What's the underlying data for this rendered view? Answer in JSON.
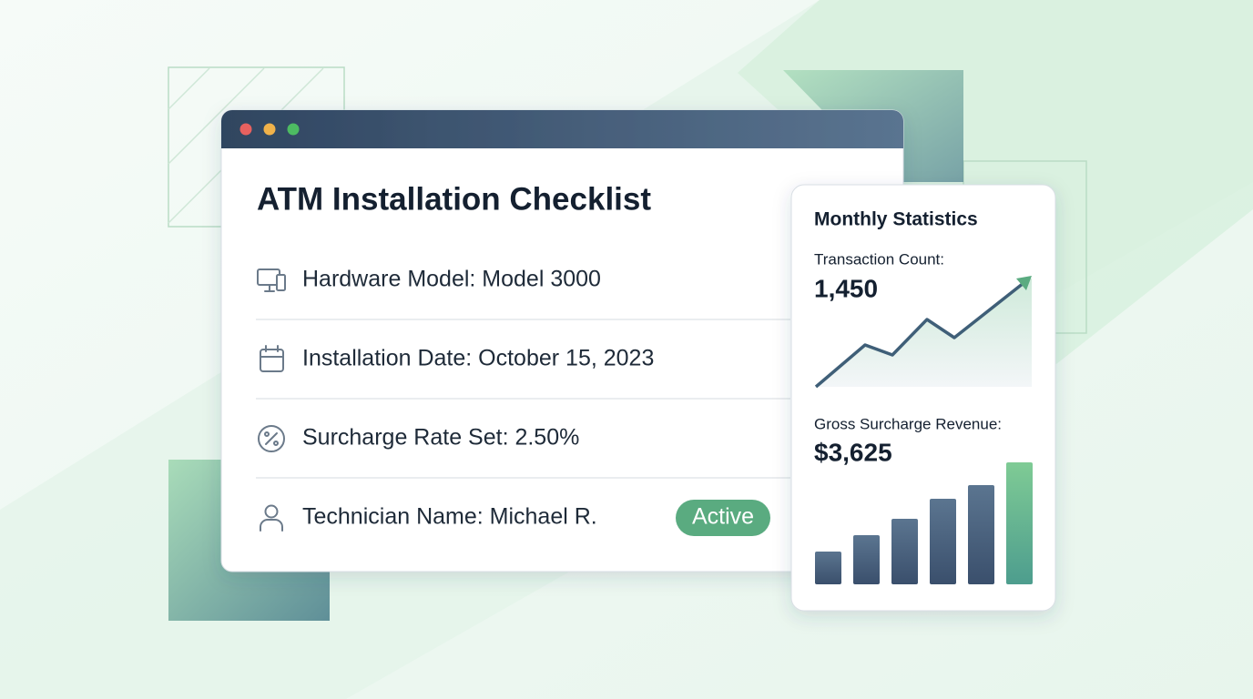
{
  "window": {
    "title": "ATM Installation Checklist",
    "items": [
      "Hardware Model: Model 3000",
      "Installation Date: October 15, 2023",
      "Surcharge Rate Set: 2.50%",
      "Technician Name: Michael R."
    ],
    "status": "Active"
  },
  "stats": {
    "title": "Monthly Statistics",
    "metrics": [
      {
        "label": "Transaction Count:",
        "value": "1,450"
      },
      {
        "label": "Gross Surcharge Revenue:",
        "value": "$3,625"
      }
    ]
  }
}
